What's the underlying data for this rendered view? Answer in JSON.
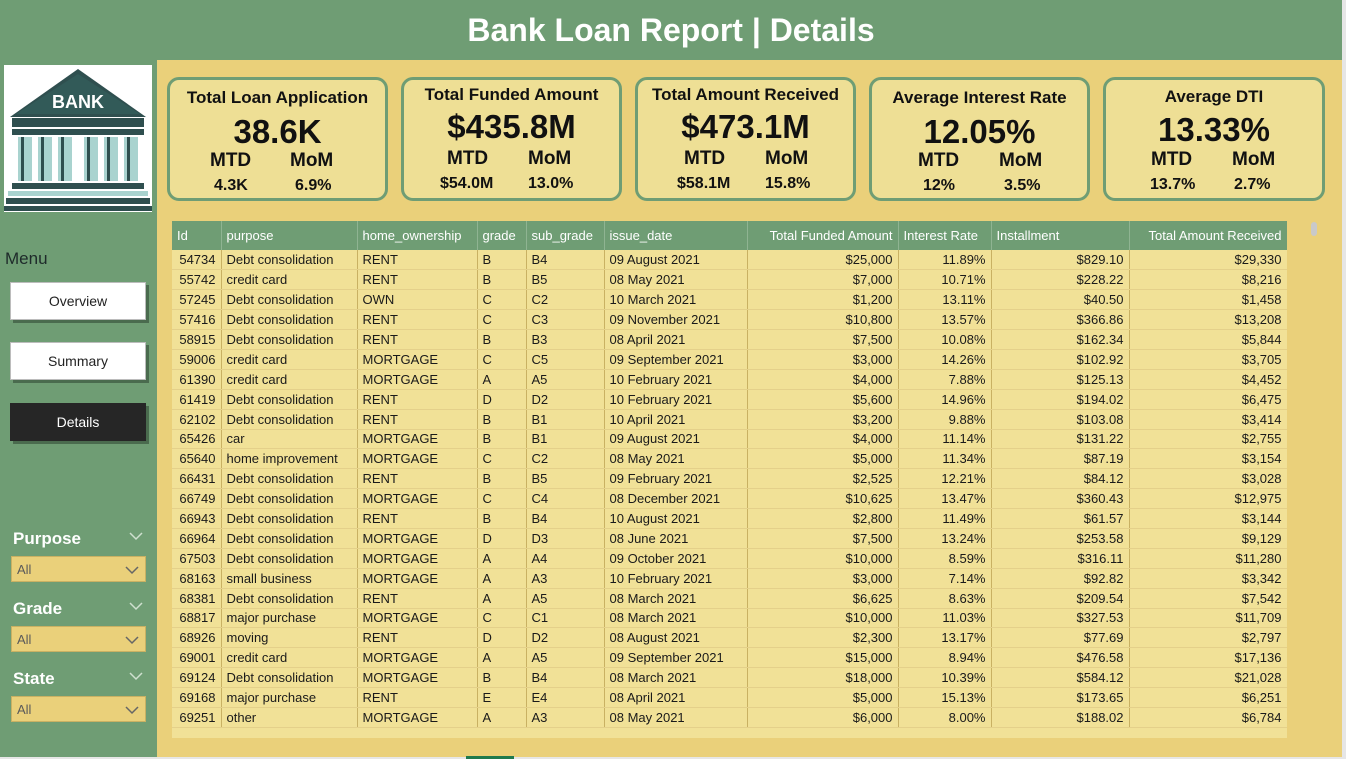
{
  "title": "Bank Loan Report | Details",
  "logo": {
    "text": "BANK"
  },
  "menu": {
    "title": "Menu",
    "items": [
      {
        "label": "Overview",
        "active": false
      },
      {
        "label": "Summary",
        "active": false
      },
      {
        "label": "Details",
        "active": true
      }
    ]
  },
  "filters": [
    {
      "label": "Purpose",
      "value": "All"
    },
    {
      "label": "Grade",
      "value": "All"
    },
    {
      "label": "State",
      "value": "All"
    }
  ],
  "kpis": [
    {
      "title": "Total Loan Application",
      "value": "38.6K",
      "mtd_label": "MTD",
      "mom_label": "MoM",
      "mtd": "4.3K",
      "mom": "6.9%"
    },
    {
      "title": "Total Funded Amount",
      "value": "$435.8M",
      "mtd_label": "MTD",
      "mom_label": "MoM",
      "mtd": "$54.0M",
      "mom": "13.0%"
    },
    {
      "title": "Total Amount Received",
      "value": "$473.1M",
      "mtd_label": "MTD",
      "mom_label": "MoM",
      "mtd": "$58.1M",
      "mom": "15.8%"
    },
    {
      "title": "Average Interest Rate",
      "value": "12.05%",
      "mtd_label": "MTD",
      "mom_label": "MoM",
      "mtd": "12%",
      "mom": "3.5%"
    },
    {
      "title": "Average DTI",
      "value": "13.33%",
      "mtd_label": "MTD",
      "mom_label": "MoM",
      "mtd": "13.7%",
      "mom": "2.7%"
    }
  ],
  "table": {
    "columns": [
      "Id",
      "purpose",
      "home_ownership",
      "grade",
      "sub_grade",
      "issue_date",
      "Total Funded Amount",
      "Interest Rate",
      "Installment",
      "Total Amount Received"
    ],
    "rows": [
      [
        "54734",
        "Debt consolidation",
        "RENT",
        "B",
        "B4",
        "09 August 2021",
        "$25,000",
        "11.89%",
        "$829.10",
        "$29,330"
      ],
      [
        "55742",
        "credit card",
        "RENT",
        "B",
        "B5",
        "08 May 2021",
        "$7,000",
        "10.71%",
        "$228.22",
        "$8,216"
      ],
      [
        "57245",
        "Debt consolidation",
        "OWN",
        "C",
        "C2",
        "10 March 2021",
        "$1,200",
        "13.11%",
        "$40.50",
        "$1,458"
      ],
      [
        "57416",
        "Debt consolidation",
        "RENT",
        "C",
        "C3",
        "09 November 2021",
        "$10,800",
        "13.57%",
        "$366.86",
        "$13,208"
      ],
      [
        "58915",
        "Debt consolidation",
        "RENT",
        "B",
        "B3",
        "08 April 2021",
        "$7,500",
        "10.08%",
        "$162.34",
        "$5,844"
      ],
      [
        "59006",
        "credit card",
        "MORTGAGE",
        "C",
        "C5",
        "09 September 2021",
        "$3,000",
        "14.26%",
        "$102.92",
        "$3,705"
      ],
      [
        "61390",
        "credit card",
        "MORTGAGE",
        "A",
        "A5",
        "10 February 2021",
        "$4,000",
        "7.88%",
        "$125.13",
        "$4,452"
      ],
      [
        "61419",
        "Debt consolidation",
        "RENT",
        "D",
        "D2",
        "10 February 2021",
        "$5,600",
        "14.96%",
        "$194.02",
        "$6,475"
      ],
      [
        "62102",
        "Debt consolidation",
        "RENT",
        "B",
        "B1",
        "10 April 2021",
        "$3,200",
        "9.88%",
        "$103.08",
        "$3,414"
      ],
      [
        "65426",
        "car",
        "MORTGAGE",
        "B",
        "B1",
        "09 August 2021",
        "$4,000",
        "11.14%",
        "$131.22",
        "$2,755"
      ],
      [
        "65640",
        "home improvement",
        "MORTGAGE",
        "C",
        "C2",
        "08 May 2021",
        "$5,000",
        "11.34%",
        "$87.19",
        "$3,154"
      ],
      [
        "66431",
        "Debt consolidation",
        "RENT",
        "B",
        "B5",
        "09 February 2021",
        "$2,525",
        "12.21%",
        "$84.12",
        "$3,028"
      ],
      [
        "66749",
        "Debt consolidation",
        "MORTGAGE",
        "C",
        "C4",
        "08 December 2021",
        "$10,625",
        "13.47%",
        "$360.43",
        "$12,975"
      ],
      [
        "66943",
        "Debt consolidation",
        "RENT",
        "B",
        "B4",
        "10 August 2021",
        "$2,800",
        "11.49%",
        "$61.57",
        "$3,144"
      ],
      [
        "66964",
        "Debt consolidation",
        "MORTGAGE",
        "D",
        "D3",
        "08 June 2021",
        "$7,500",
        "13.24%",
        "$253.58",
        "$9,129"
      ],
      [
        "67503",
        "Debt consolidation",
        "MORTGAGE",
        "A",
        "A4",
        "09 October 2021",
        "$10,000",
        "8.59%",
        "$316.11",
        "$11,280"
      ],
      [
        "68163",
        "small business",
        "MORTGAGE",
        "A",
        "A3",
        "10 February 2021",
        "$3,000",
        "7.14%",
        "$92.82",
        "$3,342"
      ],
      [
        "68381",
        "Debt consolidation",
        "RENT",
        "A",
        "A5",
        "08 March 2021",
        "$6,625",
        "8.63%",
        "$209.54",
        "$7,542"
      ],
      [
        "68817",
        "major purchase",
        "MORTGAGE",
        "C",
        "C1",
        "08 March 2021",
        "$10,000",
        "11.03%",
        "$327.53",
        "$11,709"
      ],
      [
        "68926",
        "moving",
        "RENT",
        "D",
        "D2",
        "08 August 2021",
        "$2,300",
        "13.17%",
        "$77.69",
        "$2,797"
      ],
      [
        "69001",
        "credit card",
        "MORTGAGE",
        "A",
        "A5",
        "09 September 2021",
        "$15,000",
        "8.94%",
        "$476.58",
        "$17,136"
      ],
      [
        "69124",
        "Debt consolidation",
        "MORTGAGE",
        "B",
        "B4",
        "08 March 2021",
        "$18,000",
        "10.39%",
        "$584.12",
        "$21,028"
      ],
      [
        "69168",
        "major purchase",
        "RENT",
        "E",
        "E4",
        "08 April 2021",
        "$5,000",
        "15.13%",
        "$173.65",
        "$6,251"
      ],
      [
        "69251",
        "other",
        "MORTGAGE",
        "A",
        "A3",
        "08 May 2021",
        "$6,000",
        "8.00%",
        "$188.02",
        "$6,784"
      ]
    ]
  }
}
